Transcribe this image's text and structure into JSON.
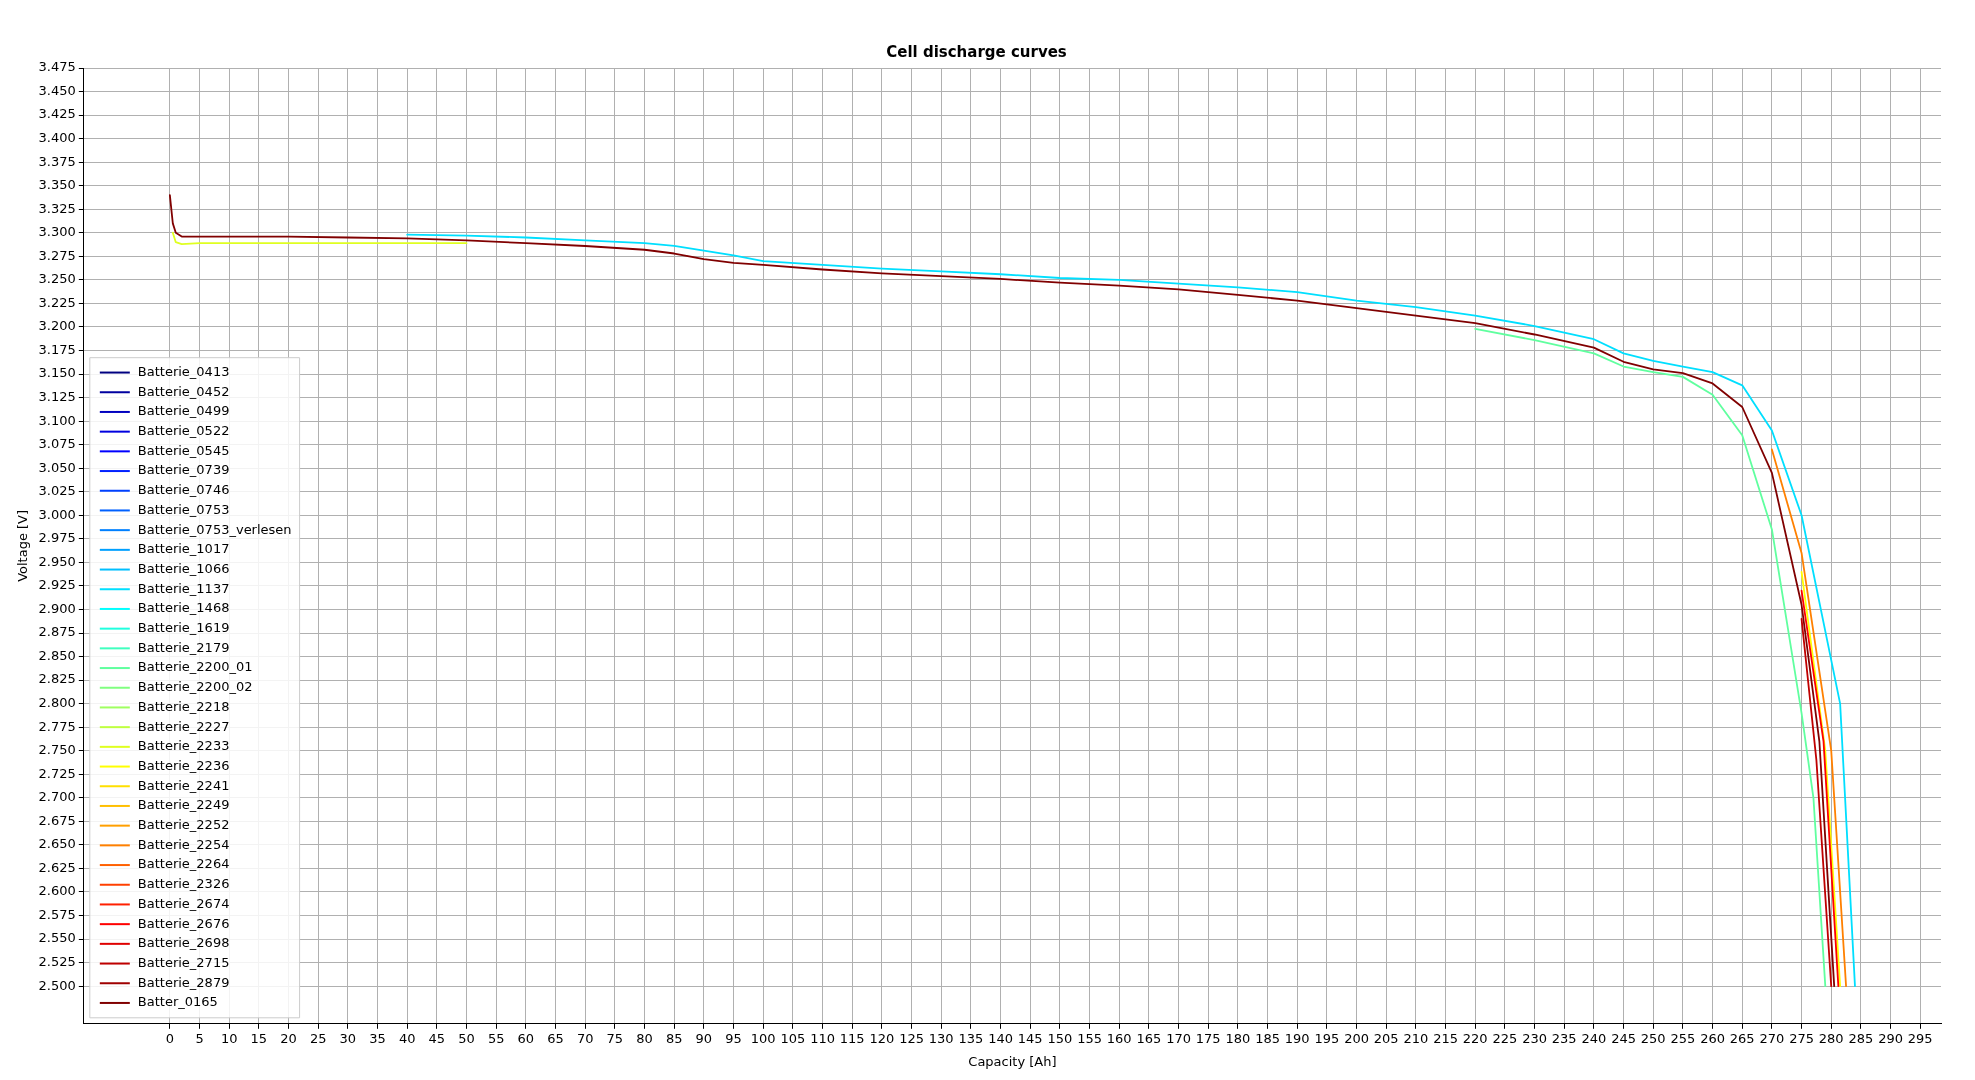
{
  "chart_data": {
    "type": "line",
    "title": "Cell discharge curves",
    "xlabel": "Capacity [Ah]",
    "ylabel": "Voltage [V]",
    "xlim": [
      -14.5,
      298.5
    ],
    "ylim": [
      2.46,
      3.475
    ],
    "xticks": [
      0,
      5,
      10,
      15,
      20,
      25,
      30,
      35,
      40,
      45,
      50,
      55,
      60,
      65,
      70,
      75,
      80,
      85,
      90,
      95,
      100,
      105,
      110,
      115,
      120,
      125,
      130,
      135,
      140,
      145,
      150,
      155,
      160,
      165,
      170,
      175,
      180,
      185,
      190,
      195,
      200,
      205,
      210,
      215,
      220,
      225,
      230,
      235,
      240,
      245,
      250,
      255,
      260,
      265,
      270,
      275,
      280,
      285,
      290,
      295
    ],
    "yticks": [
      {
        "value": 2.5,
        "label": "2.500"
      },
      2.525,
      {
        "value": 2.55,
        "label": "2.550"
      },
      2.575,
      {
        "value": 2.6,
        "label": "2.600"
      },
      2.625,
      {
        "value": 2.65,
        "label": "2.650"
      },
      2.675,
      {
        "value": 2.7,
        "label": "2.700"
      },
      2.725,
      {
        "value": 2.75,
        "label": "2.750"
      },
      2.775,
      {
        "value": 2.8,
        "label": "2.800"
      },
      2.825,
      {
        "value": 2.85,
        "label": "2.850"
      },
      2.875,
      {
        "value": 2.9,
        "label": "2.900"
      },
      2.925,
      {
        "value": 2.95,
        "label": "2.950"
      },
      2.975,
      {
        "value": 3,
        "label": "3.000"
      },
      3.025,
      {
        "value": 3.05,
        "label": "3.050"
      },
      3.075,
      {
        "value": 3.1,
        "label": "3.100"
      },
      3.125,
      {
        "value": 3.15,
        "label": "3.150"
      },
      3.175,
      {
        "value": 3.2,
        "label": "3.200"
      },
      3.225,
      {
        "value": 3.25,
        "label": "3.250"
      },
      3.275,
      {
        "value": 3.3,
        "label": "3.300"
      },
      3.325,
      {
        "value": 3.35,
        "label": "3.350"
      },
      3.375,
      {
        "value": 3.4,
        "label": "3.400"
      },
      3.425,
      {
        "value": 3.45,
        "label": "3.450"
      },
      3.475
    ],
    "grid": true,
    "legend": "lower left",
    "marker": "none",
    "line_style": "solid",
    "x": [
      0,
      0.5,
      1,
      2,
      5,
      10,
      20,
      30,
      40,
      50,
      60,
      70,
      80,
      85,
      90,
      95,
      100,
      110,
      120,
      130,
      140,
      150,
      160,
      170,
      180,
      190,
      200,
      210,
      220,
      230,
      240,
      245,
      250,
      255,
      260,
      265,
      270,
      275,
      278,
      280.5
    ],
    "series": [
      {
        "name": "Batterie_0413",
        "color": "#000080",
        "values": [
          null,
          null,
          null,
          null,
          null,
          null,
          null,
          null,
          null,
          null,
          null,
          null,
          null,
          null,
          null,
          null,
          null,
          null,
          null,
          null,
          null,
          null,
          null,
          null,
          null,
          null,
          null,
          null,
          null,
          null,
          null,
          null,
          null,
          null,
          null,
          null,
          null,
          null,
          null,
          null
        ]
      },
      {
        "name": "Batterie_0452",
        "color": "#00009f",
        "values": [
          null,
          null,
          null,
          null,
          null,
          null,
          null,
          null,
          null,
          null,
          null,
          null,
          null,
          null,
          null,
          null,
          null,
          null,
          null,
          null,
          null,
          null,
          null,
          null,
          null,
          null,
          null,
          null,
          null,
          null,
          null,
          null,
          null,
          null,
          null,
          null,
          null,
          null,
          null,
          null
        ]
      },
      {
        "name": "Batterie_0499",
        "color": "#0000bf",
        "values": [
          null,
          null,
          null,
          null,
          null,
          null,
          null,
          null,
          null,
          null,
          null,
          null,
          null,
          null,
          null,
          null,
          null,
          null,
          null,
          null,
          null,
          null,
          null,
          null,
          null,
          null,
          null,
          null,
          null,
          null,
          null,
          null,
          null,
          null,
          null,
          null,
          null,
          null,
          null,
          null
        ]
      },
      {
        "name": "Batterie_0522",
        "color": "#0000df",
        "values": [
          null,
          null,
          null,
          null,
          null,
          null,
          null,
          null,
          null,
          null,
          null,
          null,
          null,
          null,
          null,
          null,
          null,
          null,
          null,
          null,
          null,
          null,
          null,
          null,
          null,
          null,
          null,
          null,
          null,
          null,
          null,
          null,
          null,
          null,
          null,
          null,
          null,
          null,
          null,
          null
        ]
      },
      {
        "name": "Batterie_0545",
        "color": "#0000ff",
        "values": [
          null,
          null,
          null,
          null,
          null,
          null,
          null,
          null,
          null,
          null,
          null,
          null,
          null,
          null,
          null,
          null,
          null,
          null,
          null,
          null,
          null,
          null,
          null,
          null,
          null,
          null,
          null,
          null,
          null,
          null,
          null,
          null,
          null,
          null,
          null,
          null,
          null,
          null,
          null,
          null
        ]
      },
      {
        "name": "Batterie_0739",
        "color": "#0020ff",
        "values": [
          null,
          null,
          null,
          null,
          null,
          null,
          null,
          null,
          null,
          null,
          null,
          null,
          null,
          null,
          null,
          null,
          null,
          null,
          null,
          null,
          null,
          null,
          null,
          null,
          null,
          null,
          null,
          null,
          null,
          null,
          null,
          null,
          null,
          null,
          null,
          null,
          null,
          null,
          null,
          null
        ]
      },
      {
        "name": "Batterie_0746",
        "color": "#0040ff",
        "values": [
          null,
          null,
          null,
          null,
          null,
          null,
          null,
          null,
          null,
          null,
          null,
          null,
          null,
          null,
          null,
          null,
          null,
          null,
          null,
          null,
          null,
          null,
          null,
          null,
          null,
          null,
          null,
          null,
          null,
          null,
          null,
          null,
          null,
          null,
          null,
          null,
          null,
          null,
          null,
          null
        ]
      },
      {
        "name": "Batterie_0753",
        "color": "#0060ff",
        "values": [
          null,
          null,
          null,
          null,
          null,
          null,
          null,
          null,
          null,
          null,
          null,
          null,
          null,
          null,
          null,
          null,
          null,
          null,
          null,
          null,
          null,
          null,
          null,
          null,
          null,
          null,
          null,
          null,
          null,
          null,
          null,
          null,
          null,
          null,
          null,
          null,
          null,
          null,
          null,
          null
        ]
      },
      {
        "name": "Batterie_0753_verlesen",
        "color": "#0080ff",
        "values": [
          null,
          null,
          null,
          null,
          null,
          null,
          null,
          null,
          null,
          null,
          null,
          null,
          null,
          null,
          null,
          null,
          null,
          null,
          null,
          null,
          null,
          null,
          null,
          null,
          null,
          null,
          null,
          null,
          null,
          null,
          null,
          null,
          null,
          null,
          null,
          null,
          null,
          null,
          null,
          null
        ]
      },
      {
        "name": "Batterie_1017",
        "color": "#00a0ff",
        "values": [
          null,
          null,
          null,
          null,
          null,
          null,
          null,
          null,
          null,
          null,
          null,
          null,
          null,
          null,
          null,
          null,
          null,
          null,
          null,
          null,
          null,
          null,
          null,
          null,
          null,
          null,
          null,
          null,
          null,
          null,
          null,
          null,
          null,
          null,
          null,
          null,
          null,
          null,
          null,
          null
        ]
      },
      {
        "name": "Batterie_1066",
        "color": "#00bfff",
        "values": [
          null,
          null,
          null,
          null,
          null,
          null,
          null,
          null,
          null,
          null,
          null,
          null,
          null,
          null,
          null,
          null,
          null,
          null,
          null,
          null,
          null,
          null,
          null,
          null,
          null,
          null,
          null,
          null,
          null,
          null,
          null,
          null,
          null,
          null,
          null,
          null,
          null,
          null,
          null,
          null
        ]
      },
      {
        "name": "Batterie_1137",
        "color": "#00dfff",
        "x": [
          40,
          50,
          60,
          70,
          80,
          85,
          90,
          95,
          100,
          110,
          120,
          130,
          140,
          150,
          160,
          170,
          180,
          190,
          200,
          210,
          220,
          230,
          240,
          245,
          250,
          255,
          260,
          265,
          270,
          275,
          281.5,
          284
        ],
        "values": [
          3.298,
          3.297,
          3.295,
          3.292,
          3.289,
          3.286,
          3.281,
          3.276,
          3.27,
          3.266,
          3.262,
          3.259,
          3.256,
          3.252,
          3.25,
          3.246,
          3.242,
          3.237,
          3.228,
          3.221,
          3.212,
          3.201,
          3.187,
          3.172,
          3.164,
          3.158,
          3.152,
          3.138,
          3.09,
          3.0,
          2.8,
          2.5
        ]
      },
      {
        "name": "Batterie_1468",
        "color": "#00ffff",
        "values": [
          null,
          null,
          null,
          null,
          null,
          null,
          null,
          null,
          null,
          null,
          null,
          null,
          null,
          null,
          null,
          null,
          null,
          null,
          null,
          null,
          null,
          null,
          null,
          null,
          null,
          null,
          null,
          null,
          null,
          null,
          null,
          null,
          null,
          null,
          null,
          null,
          null,
          null,
          null,
          null
        ]
      },
      {
        "name": "Batterie_1619",
        "color": "#20ffdf",
        "values": [
          null,
          null,
          null,
          null,
          null,
          null,
          null,
          null,
          null,
          null,
          null,
          null,
          null,
          null,
          null,
          null,
          null,
          null,
          null,
          null,
          null,
          null,
          null,
          null,
          null,
          null,
          null,
          null,
          null,
          null,
          null,
          null,
          null,
          null,
          null,
          null,
          null,
          null,
          null,
          null
        ]
      },
      {
        "name": "Batterie_2179",
        "color": "#40ffbf",
        "values": [
          null,
          null,
          null,
          null,
          null,
          null,
          null,
          null,
          null,
          null,
          null,
          null,
          null,
          null,
          null,
          null,
          null,
          null,
          null,
          null,
          null,
          null,
          null,
          null,
          null,
          null,
          null,
          null,
          null,
          null,
          null,
          null,
          null,
          null,
          null,
          null,
          null,
          null,
          null,
          null
        ]
      },
      {
        "name": "Batterie_2200_01",
        "color": "#60ff9f",
        "x": [
          220,
          230,
          240,
          245,
          250,
          255,
          260,
          265,
          270,
          275,
          277,
          279
        ],
        "values": [
          3.198,
          3.186,
          3.172,
          3.158,
          3.152,
          3.147,
          3.128,
          3.085,
          2.985,
          2.79,
          2.7,
          2.5
        ]
      },
      {
        "name": "Batterie_2200_02",
        "color": "#80ff80",
        "values": [
          null,
          null,
          null,
          null,
          null,
          null,
          null,
          null,
          null,
          null,
          null,
          null,
          null,
          null,
          null,
          null,
          null,
          null,
          null,
          null,
          null,
          null,
          null,
          null,
          null,
          null,
          null,
          null,
          null,
          null,
          null,
          null,
          null,
          null,
          null,
          null,
          null,
          null,
          null,
          null
        ]
      },
      {
        "name": "Batterie_2218",
        "color": "#9fff60",
        "values": [
          null,
          null,
          null,
          null,
          null,
          null,
          null,
          null,
          null,
          null,
          null,
          null,
          null,
          null,
          null,
          null,
          null,
          null,
          null,
          null,
          null,
          null,
          null,
          null,
          null,
          null,
          null,
          null,
          null,
          null,
          null,
          null,
          null,
          null,
          null,
          null,
          null,
          null,
          null,
          null
        ]
      },
      {
        "name": "Batterie_2227",
        "color": "#bfff40",
        "values": [
          null,
          null,
          null,
          null,
          null,
          null,
          null,
          null,
          null,
          null,
          null,
          null,
          null,
          null,
          null,
          null,
          null,
          null,
          null,
          null,
          null,
          null,
          null,
          null,
          null,
          null,
          null,
          null,
          null,
          null,
          null,
          null,
          null,
          null,
          null,
          null,
          null,
          null,
          null,
          null
        ]
      },
      {
        "name": "Batterie_2233",
        "color": "#dfff20",
        "values": [
          null,
          3.3,
          3.29,
          3.288,
          3.289,
          3.289,
          3.289,
          3.289,
          3.289,
          3.289,
          null,
          null,
          null,
          null,
          null,
          null,
          null,
          null,
          null,
          null,
          null,
          null,
          null,
          null,
          null,
          null,
          null,
          null,
          null,
          null,
          null,
          null,
          null,
          null,
          null,
          null,
          null,
          null,
          null,
          null
        ]
      },
      {
        "name": "Batterie_2236",
        "color": "#ffff00",
        "x": [
          275,
          279,
          281.5
        ],
        "values": [
          2.94,
          2.75,
          2.5
        ]
      },
      {
        "name": "Batterie_2241",
        "color": "#ffdf00",
        "values": [
          null,
          null,
          null,
          null,
          null,
          null,
          null,
          null,
          null,
          null,
          null,
          null,
          null,
          null,
          null,
          null,
          null,
          null,
          null,
          null,
          null,
          null,
          null,
          null,
          null,
          null,
          null,
          null,
          null,
          null,
          null,
          null,
          null,
          null,
          null,
          null,
          null,
          null,
          null,
          null
        ]
      },
      {
        "name": "Batterie_2249",
        "color": "#ffbf00",
        "values": [
          null,
          null,
          null,
          null,
          null,
          null,
          null,
          null,
          null,
          null,
          null,
          null,
          null,
          null,
          null,
          null,
          null,
          null,
          null,
          null,
          null,
          null,
          null,
          null,
          null,
          null,
          null,
          null,
          null,
          null,
          null,
          null,
          null,
          null,
          null,
          null,
          null,
          null,
          null,
          null
        ]
      },
      {
        "name": "Batterie_2252",
        "color": "#ff9f00",
        "values": [
          null,
          null,
          null,
          null,
          null,
          null,
          null,
          null,
          null,
          null,
          null,
          null,
          null,
          null,
          null,
          null,
          null,
          null,
          null,
          null,
          null,
          null,
          null,
          null,
          null,
          null,
          null,
          null,
          null,
          null,
          null,
          null,
          null,
          null,
          null,
          null,
          null,
          null,
          null,
          null
        ]
      },
      {
        "name": "Batterie_2254",
        "color": "#ff8000",
        "x": [
          270,
          275,
          280,
          282.5
        ],
        "values": [
          3.07,
          2.96,
          2.75,
          2.5
        ]
      },
      {
        "name": "Batterie_2264",
        "color": "#ff6000",
        "values": [
          null,
          null,
          null,
          null,
          null,
          null,
          null,
          null,
          null,
          null,
          null,
          null,
          null,
          null,
          null,
          null,
          null,
          null,
          null,
          null,
          null,
          null,
          null,
          null,
          null,
          null,
          null,
          null,
          null,
          null,
          null,
          null,
          null,
          null,
          null,
          null,
          null,
          null,
          null,
          null
        ]
      },
      {
        "name": "Batterie_2326",
        "color": "#ff4000",
        "values": [
          null,
          null,
          null,
          null,
          null,
          null,
          null,
          null,
          null,
          null,
          null,
          null,
          null,
          null,
          null,
          null,
          null,
          null,
          null,
          null,
          null,
          null,
          null,
          null,
          null,
          null,
          null,
          null,
          null,
          null,
          null,
          null,
          null,
          null,
          null,
          null,
          null,
          null,
          null,
          null
        ]
      },
      {
        "name": "Batterie_2674",
        "color": "#ff2000",
        "values": [
          null,
          null,
          null,
          null,
          null,
          null,
          null,
          null,
          null,
          null,
          null,
          null,
          null,
          null,
          null,
          null,
          null,
          null,
          null,
          null,
          null,
          null,
          null,
          null,
          null,
          null,
          null,
          null,
          null,
          null,
          null,
          null,
          null,
          null,
          null,
          null,
          null,
          null,
          null,
          null
        ]
      },
      {
        "name": "Batterie_2676",
        "color": "#ff0000",
        "x": [
          275,
          278.7,
          281.2
        ],
        "values": [
          2.92,
          2.76,
          2.5
        ]
      },
      {
        "name": "Batterie_2698",
        "color": "#df0000",
        "values": [
          null,
          null,
          null,
          null,
          null,
          null,
          null,
          null,
          null,
          null,
          null,
          null,
          null,
          null,
          null,
          null,
          null,
          null,
          null,
          null,
          null,
          null,
          null,
          null,
          null,
          null,
          null,
          null,
          null,
          null,
          null,
          null,
          null,
          null,
          null,
          null,
          null,
          null,
          null,
          null
        ]
      },
      {
        "name": "Batterie_2715",
        "color": "#bf0000",
        "x": [
          275,
          277.5,
          280
        ],
        "values": [
          2.89,
          2.74,
          2.5
        ]
      },
      {
        "name": "Batterie_2879",
        "color": "#9f0000",
        "values": [
          null,
          null,
          null,
          null,
          null,
          null,
          null,
          null,
          null,
          null,
          null,
          null,
          null,
          null,
          null,
          null,
          null,
          null,
          null,
          null,
          null,
          null,
          null,
          null,
          null,
          null,
          null,
          null,
          null,
          null,
          null,
          null,
          null,
          null,
          null,
          null,
          null,
          null,
          null,
          null
        ]
      },
      {
        "name": "Batter_0165",
        "color": "#800000",
        "values": [
          3.34,
          3.31,
          3.3,
          3.296,
          3.296,
          3.296,
          3.296,
          3.295,
          3.294,
          3.292,
          3.289,
          3.286,
          3.282,
          3.278,
          3.272,
          3.268,
          3.266,
          3.261,
          3.257,
          3.254,
          3.251,
          3.247,
          3.244,
          3.24,
          3.234,
          3.228,
          3.22,
          3.212,
          3.204,
          3.192,
          3.178,
          3.163,
          3.155,
          3.151,
          3.14,
          3.115,
          3.045,
          2.905,
          2.76,
          2.5
        ]
      }
    ]
  }
}
